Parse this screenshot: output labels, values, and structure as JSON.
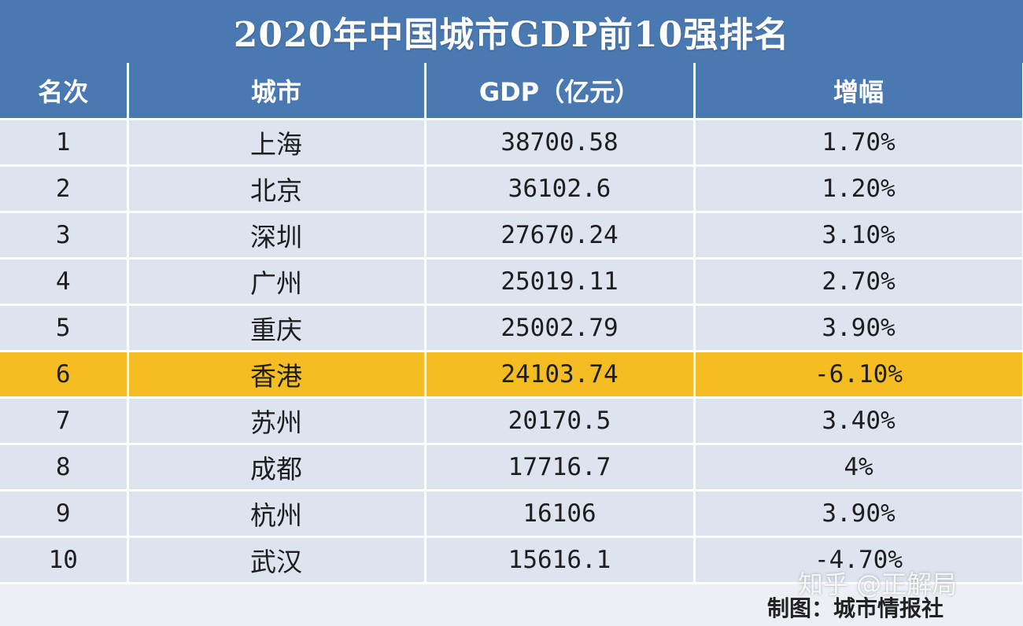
{
  "title": "2020年中国城市GDP前10强排名",
  "headers": [
    "名次",
    "城市",
    "GDP（亿元）",
    "增幅"
  ],
  "rows": [
    {
      "rank": "1",
      "city": "上海",
      "gdp": "38700.58",
      "growth": "1.70%"
    },
    {
      "rank": "2",
      "city": "北京",
      "gdp": "36102.6",
      "growth": "1.20%"
    },
    {
      "rank": "3",
      "city": "深圳",
      "gdp": "27670.24",
      "growth": "3.10%"
    },
    {
      "rank": "4",
      "city": "广州",
      "gdp": "25019.11",
      "growth": "2.70%"
    },
    {
      "rank": "5",
      "city": "重庆",
      "gdp": "25002.79",
      "growth": "3.90%"
    },
    {
      "rank": "6",
      "city": "香港",
      "gdp": "24103.74",
      "growth": "-6.10%"
    },
    {
      "rank": "7",
      "city": "苏州",
      "gdp": "20170.5",
      "growth": "3.40%"
    },
    {
      "rank": "8",
      "city": "成都",
      "gdp": "17716.7",
      "growth": "4%"
    },
    {
      "rank": "9",
      "city": "杭州",
      "gdp": "16106",
      "growth": "3.90%"
    },
    {
      "rank": "10",
      "city": "武汉",
      "gdp": "15616.1",
      "growth": "-4.70%"
    }
  ],
  "highlighted_rank": "6",
  "watermark": "知乎 @正解局",
  "credit": "制图：城市情报社",
  "colors": {
    "header_bg": "#4a79b2",
    "row_bg": "#dde3ef",
    "highlight_bg": "#f5bd21"
  }
}
